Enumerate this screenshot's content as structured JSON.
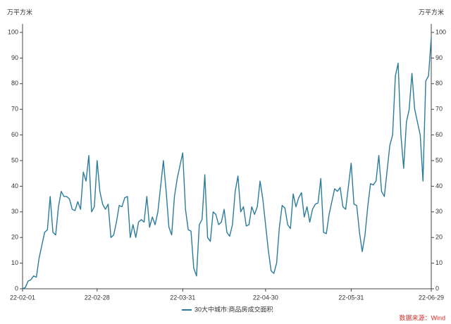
{
  "chart_data": {
    "type": "line",
    "ylabel": "万平方米",
    "y2label": "万平方米",
    "source": "数据来源：Wind",
    "categories": [
      "22-02-01",
      null,
      null,
      null,
      null,
      null,
      null,
      null,
      null,
      null,
      null,
      null,
      null,
      null,
      null,
      null,
      null,
      null,
      null,
      null,
      null,
      null,
      null,
      null,
      null,
      null,
      null,
      "22-02-28",
      null,
      null,
      null,
      null,
      null,
      null,
      null,
      null,
      null,
      null,
      null,
      null,
      null,
      null,
      null,
      null,
      null,
      null,
      null,
      null,
      null,
      null,
      null,
      null,
      null,
      null,
      null,
      null,
      null,
      null,
      "22-03-31",
      null,
      null,
      null,
      null,
      null,
      null,
      null,
      null,
      null,
      null,
      null,
      null,
      null,
      null,
      null,
      null,
      null,
      null,
      null,
      null,
      null,
      null,
      null,
      null,
      null,
      null,
      null,
      null,
      null,
      "22-04-30",
      null,
      null,
      null,
      null,
      null,
      null,
      null,
      null,
      null,
      null,
      null,
      null,
      null,
      null,
      null,
      null,
      null,
      null,
      null,
      null,
      null,
      null,
      null,
      null,
      null,
      null,
      null,
      null,
      null,
      null,
      "22-05-31",
      null,
      null,
      null,
      null,
      null,
      null,
      null,
      null,
      null,
      null,
      null,
      null,
      null,
      null,
      null,
      null,
      null,
      null,
      null,
      null,
      null,
      null,
      null,
      null,
      null,
      null,
      null,
      null,
      "22-06-29"
    ],
    "series": [
      {
        "name": "30大中城市:商品房成交面积",
        "color": "#2b7b9c",
        "values": [
          0,
          0.5,
          3,
          3.5,
          5,
          4.5,
          12,
          17,
          22,
          23,
          36,
          22,
          21,
          32,
          38,
          36,
          36,
          35,
          31,
          30.5,
          34,
          31,
          45.5,
          42,
          52,
          30,
          32,
          50,
          38,
          33,
          31,
          33,
          20,
          21,
          26,
          32.5,
          32,
          35.5,
          36,
          20,
          25,
          20,
          26,
          27,
          26,
          36,
          24,
          28,
          25,
          30,
          40,
          50,
          38,
          24,
          21,
          36,
          43,
          48,
          53,
          31,
          23,
          22.5,
          8,
          5,
          25,
          27,
          44.5,
          20,
          18.5,
          30,
          29,
          25,
          26,
          31,
          22,
          20.5,
          25,
          38,
          44,
          30,
          32,
          24.5,
          25,
          32,
          29,
          32,
          42,
          35,
          25,
          15,
          7,
          6,
          10,
          24,
          32.5,
          31.5,
          25,
          23.5,
          37,
          32,
          35.5,
          37.5,
          28,
          32,
          26,
          31,
          33,
          33.5,
          43,
          22,
          21.5,
          29,
          34,
          39,
          38,
          39.5,
          32,
          31,
          40,
          49,
          33,
          32.5,
          22,
          14.5,
          21,
          32,
          41,
          40.5,
          42,
          52,
          38,
          36,
          46,
          56,
          60,
          83,
          88,
          60,
          47,
          65,
          70,
          84,
          70,
          65,
          60,
          42,
          81,
          83,
          98
        ]
      }
    ],
    "ylim": [
      0,
      100
    ],
    "yticks": [
      0,
      10,
      20,
      30,
      40,
      50,
      60,
      70,
      80,
      90,
      100
    ],
    "y2lim": [
      0,
      100
    ],
    "y2ticks": [
      0,
      10,
      20,
      30,
      40,
      50,
      60,
      70,
      80,
      90,
      100
    ],
    "grid": false
  }
}
